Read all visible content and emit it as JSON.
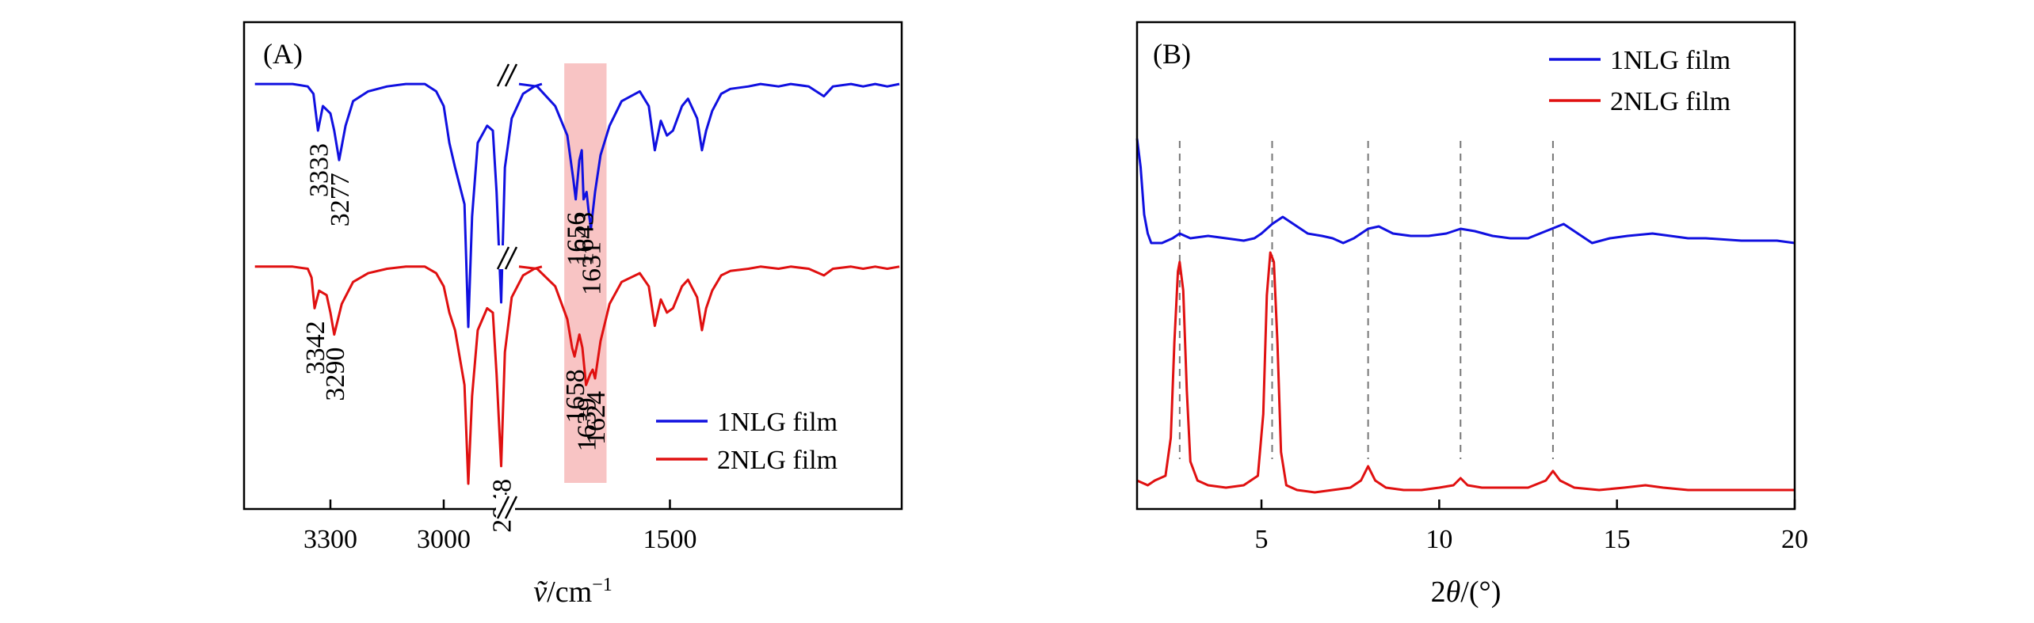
{
  "chart_data": [
    {
      "panel": "(A)",
      "type": "line",
      "xlabel_symbol": "ṽ",
      "xlabel_unit": "/cm",
      "xlabel_exp": "−1",
      "axis_break": true,
      "break_mark": "//",
      "x_ticks": [
        "3300",
        "3000",
        "1500"
      ],
      "highlight_region": [
        1675,
        1605
      ],
      "highlight_color": "#f8c4c4",
      "legend_position": "bottom-right",
      "series": [
        {
          "name": "1NLG film",
          "color": "#1010e0",
          "points": [
            [
              3500,
              0.01
            ],
            [
              3400,
              0.01
            ],
            [
              3360,
              0.02
            ],
            [
              3345,
              0.05
            ],
            [
              3333,
              0.2
            ],
            [
              3320,
              0.1
            ],
            [
              3300,
              0.13
            ],
            [
              3290,
              0.2
            ],
            [
              3277,
              0.32
            ],
            [
              3260,
              0.18
            ],
            [
              3240,
              0.08
            ],
            [
              3200,
              0.04
            ],
            [
              3150,
              0.02
            ],
            [
              3100,
              0.01
            ],
            [
              3050,
              0.01
            ],
            [
              3020,
              0.04
            ],
            [
              3000,
              0.1
            ],
            [
              2985,
              0.25
            ],
            [
              2970,
              0.35
            ],
            [
              2945,
              0.5
            ],
            [
              2935,
              1.0
            ],
            [
              2925,
              0.55
            ],
            [
              2910,
              0.25
            ],
            [
              2885,
              0.18
            ],
            [
              2870,
              0.2
            ],
            [
              2860,
              0.45
            ],
            [
              2848,
              0.9
            ],
            [
              2838,
              0.35
            ],
            [
              2820,
              0.15
            ],
            [
              2790,
              0.05
            ],
            [
              2760,
              0.02
            ],
            [
              2740,
              0.01
            ],
            [
              1750,
              0.01
            ],
            [
              1720,
              0.02
            ],
            [
              1690,
              0.1
            ],
            [
              1670,
              0.22
            ],
            [
              1660,
              0.4
            ],
            [
              1656,
              0.48
            ],
            [
              1650,
              0.32
            ],
            [
              1646,
              0.28
            ],
            [
              1643,
              0.48
            ],
            [
              1638,
              0.45
            ],
            [
              1635,
              0.52
            ],
            [
              1631,
              0.6
            ],
            [
              1624,
              0.45
            ],
            [
              1615,
              0.3
            ],
            [
              1600,
              0.18
            ],
            [
              1580,
              0.08
            ],
            [
              1550,
              0.04
            ],
            [
              1535,
              0.1
            ],
            [
              1525,
              0.28
            ],
            [
              1515,
              0.16
            ],
            [
              1505,
              0.22
            ],
            [
              1495,
              0.2
            ],
            [
              1480,
              0.1
            ],
            [
              1470,
              0.07
            ],
            [
              1455,
              0.15
            ],
            [
              1447,
              0.28
            ],
            [
              1440,
              0.2
            ],
            [
              1430,
              0.12
            ],
            [
              1415,
              0.05
            ],
            [
              1400,
              0.03
            ],
            [
              1370,
              0.02
            ],
            [
              1350,
              0.01
            ],
            [
              1320,
              0.02
            ],
            [
              1300,
              0.01
            ],
            [
              1270,
              0.02
            ],
            [
              1245,
              0.06
            ],
            [
              1230,
              0.02
            ],
            [
              1200,
              0.01
            ],
            [
              1180,
              0.02
            ],
            [
              1160,
              0.01
            ],
            [
              1140,
              0.02
            ],
            [
              1120,
              0.01
            ]
          ]
        },
        {
          "name": "2NLG film",
          "color": "#e01010",
          "points": [
            [
              3500,
              0.01
            ],
            [
              3400,
              0.01
            ],
            [
              3360,
              0.02
            ],
            [
              3350,
              0.06
            ],
            [
              3342,
              0.2
            ],
            [
              3330,
              0.12
            ],
            [
              3310,
              0.14
            ],
            [
              3300,
              0.22
            ],
            [
              3290,
              0.32
            ],
            [
              3270,
              0.18
            ],
            [
              3240,
              0.08
            ],
            [
              3200,
              0.04
            ],
            [
              3150,
              0.02
            ],
            [
              3100,
              0.01
            ],
            [
              3050,
              0.01
            ],
            [
              3020,
              0.04
            ],
            [
              3000,
              0.1
            ],
            [
              2985,
              0.22
            ],
            [
              2970,
              0.3
            ],
            [
              2945,
              0.55
            ],
            [
              2935,
              1.0
            ],
            [
              2925,
              0.6
            ],
            [
              2910,
              0.3
            ],
            [
              2885,
              0.2
            ],
            [
              2870,
              0.22
            ],
            [
              2860,
              0.5
            ],
            [
              2848,
              0.92
            ],
            [
              2838,
              0.4
            ],
            [
              2820,
              0.15
            ],
            [
              2790,
              0.05
            ],
            [
              2760,
              0.02
            ],
            [
              2740,
              0.01
            ],
            [
              1750,
              0.01
            ],
            [
              1720,
              0.02
            ],
            [
              1690,
              0.1
            ],
            [
              1670,
              0.25
            ],
            [
              1662,
              0.38
            ],
            [
              1658,
              0.42
            ],
            [
              1650,
              0.32
            ],
            [
              1645,
              0.38
            ],
            [
              1639,
              0.55
            ],
            [
              1632,
              0.5
            ],
            [
              1628,
              0.48
            ],
            [
              1624,
              0.52
            ],
            [
              1615,
              0.35
            ],
            [
              1600,
              0.18
            ],
            [
              1580,
              0.08
            ],
            [
              1550,
              0.04
            ],
            [
              1535,
              0.1
            ],
            [
              1525,
              0.28
            ],
            [
              1515,
              0.16
            ],
            [
              1505,
              0.22
            ],
            [
              1495,
              0.2
            ],
            [
              1480,
              0.1
            ],
            [
              1470,
              0.07
            ],
            [
              1455,
              0.15
            ],
            [
              1447,
              0.3
            ],
            [
              1440,
              0.2
            ],
            [
              1430,
              0.12
            ],
            [
              1415,
              0.05
            ],
            [
              1400,
              0.03
            ],
            [
              1370,
              0.02
            ],
            [
              1350,
              0.01
            ],
            [
              1320,
              0.02
            ],
            [
              1300,
              0.01
            ],
            [
              1270,
              0.02
            ],
            [
              1245,
              0.05
            ],
            [
              1230,
              0.02
            ],
            [
              1200,
              0.01
            ],
            [
              1180,
              0.02
            ],
            [
              1160,
              0.01
            ],
            [
              1140,
              0.02
            ],
            [
              1120,
              0.01
            ]
          ]
        }
      ],
      "annotations": [
        {
          "series": 0,
          "labels": [
            "3333",
            "3277"
          ]
        },
        {
          "series": 0,
          "labels": [
            "1656",
            "1643",
            "1631"
          ]
        },
        {
          "series": 1,
          "labels": [
            "3342",
            "3290"
          ]
        },
        {
          "series": 1,
          "labels": [
            "2848"
          ]
        },
        {
          "series": 1,
          "labels": [
            "1658",
            "1639",
            "1624"
          ]
        }
      ]
    },
    {
      "panel": "(B)",
      "type": "line",
      "xlabel_prefix": "2",
      "xlabel_symbol": "θ",
      "xlabel_unit": "/(°)",
      "xlim": [
        1.5,
        20
      ],
      "x_ticks": [
        5,
        10,
        15,
        20
      ],
      "reference_lines_x": [
        2.7,
        5.3,
        8.0,
        10.6,
        13.2
      ],
      "legend_position": "top-right",
      "series": [
        {
          "name": "1NLG film",
          "color": "#1010e0",
          "points": [
            [
              1.5,
              0.78
            ],
            [
              1.6,
              0.72
            ],
            [
              1.7,
              0.62
            ],
            [
              1.8,
              0.58
            ],
            [
              1.9,
              0.56
            ],
            [
              2.2,
              0.56
            ],
            [
              2.5,
              0.57
            ],
            [
              2.7,
              0.58
            ],
            [
              3.0,
              0.57
            ],
            [
              3.5,
              0.575
            ],
            [
              4.0,
              0.57
            ],
            [
              4.5,
              0.565
            ],
            [
              4.8,
              0.57
            ],
            [
              5.0,
              0.58
            ],
            [
              5.3,
              0.6
            ],
            [
              5.6,
              0.615
            ],
            [
              5.9,
              0.6
            ],
            [
              6.3,
              0.58
            ],
            [
              6.7,
              0.575
            ],
            [
              7.0,
              0.57
            ],
            [
              7.3,
              0.56
            ],
            [
              7.6,
              0.57
            ],
            [
              8.0,
              0.59
            ],
            [
              8.3,
              0.595
            ],
            [
              8.7,
              0.58
            ],
            [
              9.2,
              0.575
            ],
            [
              9.7,
              0.575
            ],
            [
              10.2,
              0.58
            ],
            [
              10.6,
              0.59
            ],
            [
              11.0,
              0.585
            ],
            [
              11.5,
              0.575
            ],
            [
              12.0,
              0.57
            ],
            [
              12.5,
              0.57
            ],
            [
              13.0,
              0.585
            ],
            [
              13.5,
              0.6
            ],
            [
              13.9,
              0.58
            ],
            [
              14.3,
              0.56
            ],
            [
              14.8,
              0.57
            ],
            [
              15.3,
              0.575
            ],
            [
              16.0,
              0.58
            ],
            [
              16.5,
              0.575
            ],
            [
              17.0,
              0.57
            ],
            [
              17.5,
              0.57
            ],
            [
              18.5,
              0.565
            ],
            [
              19.5,
              0.565
            ],
            [
              20.0,
              0.56
            ]
          ]
        },
        {
          "name": "2NLG film",
          "color": "#e01010",
          "points": [
            [
              1.5,
              0.06
            ],
            [
              1.8,
              0.05
            ],
            [
              2.0,
              0.06
            ],
            [
              2.3,
              0.07
            ],
            [
              2.45,
              0.15
            ],
            [
              2.55,
              0.35
            ],
            [
              2.65,
              0.5
            ],
            [
              2.7,
              0.52
            ],
            [
              2.8,
              0.46
            ],
            [
              2.9,
              0.25
            ],
            [
              3.0,
              0.1
            ],
            [
              3.2,
              0.06
            ],
            [
              3.5,
              0.05
            ],
            [
              4.0,
              0.045
            ],
            [
              4.5,
              0.05
            ],
            [
              4.9,
              0.07
            ],
            [
              5.05,
              0.2
            ],
            [
              5.15,
              0.45
            ],
            [
              5.25,
              0.54
            ],
            [
              5.35,
              0.52
            ],
            [
              5.45,
              0.35
            ],
            [
              5.55,
              0.12
            ],
            [
              5.7,
              0.05
            ],
            [
              6.0,
              0.04
            ],
            [
              6.5,
              0.035
            ],
            [
              7.0,
              0.04
            ],
            [
              7.5,
              0.045
            ],
            [
              7.8,
              0.06
            ],
            [
              8.0,
              0.09
            ],
            [
              8.2,
              0.06
            ],
            [
              8.5,
              0.045
            ],
            [
              9.0,
              0.04
            ],
            [
              9.5,
              0.04
            ],
            [
              10.0,
              0.045
            ],
            [
              10.4,
              0.05
            ],
            [
              10.6,
              0.065
            ],
            [
              10.8,
              0.05
            ],
            [
              11.2,
              0.045
            ],
            [
              11.8,
              0.045
            ],
            [
              12.5,
              0.045
            ],
            [
              13.0,
              0.06
            ],
            [
              13.2,
              0.08
            ],
            [
              13.4,
              0.06
            ],
            [
              13.8,
              0.045
            ],
            [
              14.5,
              0.04
            ],
            [
              15.2,
              0.045
            ],
            [
              15.8,
              0.05
            ],
            [
              16.3,
              0.045
            ],
            [
              17.0,
              0.04
            ],
            [
              18.0,
              0.04
            ],
            [
              19.0,
              0.04
            ],
            [
              20.0,
              0.04
            ]
          ]
        }
      ]
    }
  ]
}
